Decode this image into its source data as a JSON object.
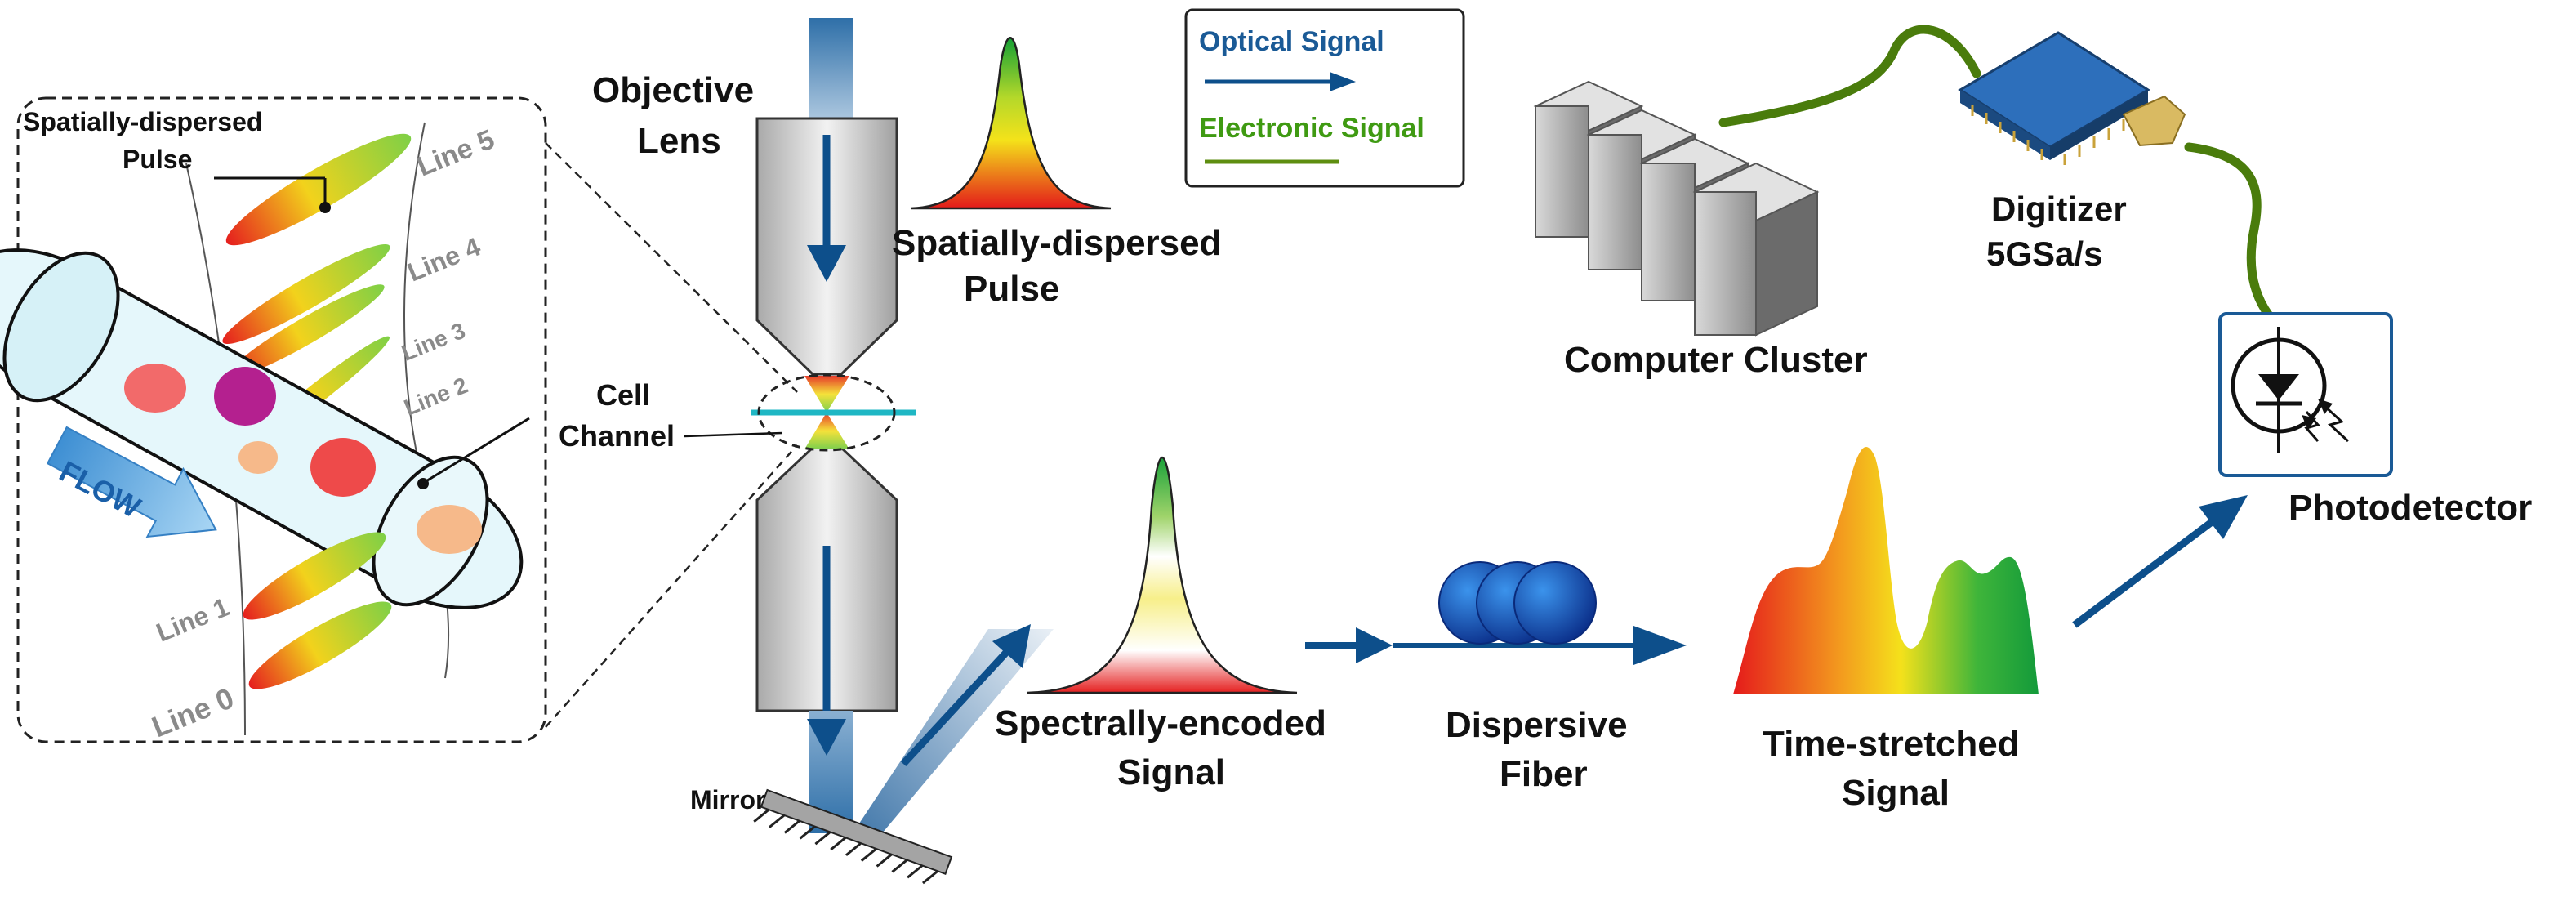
{
  "inset": {
    "pulse_label": [
      "Spatially-dispersed",
      "Pulse"
    ],
    "flow_label": "FLOW",
    "lines": [
      "Line 5",
      "Line 4",
      "Line 3",
      "Line 2",
      "Line 1",
      "Line 0"
    ]
  },
  "objective": {
    "label": [
      "Objective",
      "Lens"
    ]
  },
  "spatial_pulse": {
    "label": [
      "Spatially-dispersed",
      "Pulse"
    ]
  },
  "cell_channel": {
    "label": [
      "Cell",
      "Channel"
    ]
  },
  "mirror": {
    "label": "Mirror"
  },
  "legend": {
    "optical": "Optical Signal",
    "electronic": "Electronic Signal"
  },
  "computer": {
    "label": "Computer Cluster"
  },
  "digitizer": {
    "label": [
      "Digitizer",
      "5GSa/s"
    ]
  },
  "photodetector": {
    "label": "Photodetector"
  },
  "spectral": {
    "label": [
      "Spectrally-encoded",
      "Signal"
    ]
  },
  "fiber": {
    "label": [
      "Dispersive",
      "Fiber"
    ]
  },
  "stretched": {
    "label": [
      "Time-stretched",
      "Signal"
    ]
  },
  "colors": {
    "optical": "#0d4f8b",
    "electronic": "#5e8e10",
    "optical_text": "#1a5a96",
    "electronic_text": "#3f9a12"
  }
}
